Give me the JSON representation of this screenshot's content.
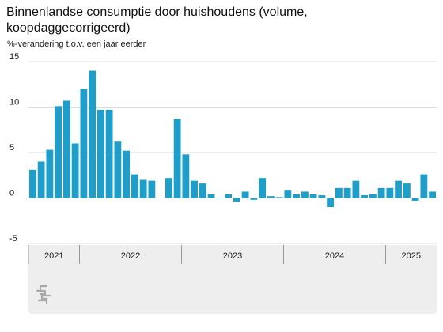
{
  "title": "Binnenlandse consumptie door huishoudens (volume, koopdaggecorrigeerd)",
  "subtitle": "%-verandering t.o.v. een jaar eerder",
  "colors": {
    "bar": "#1f9ec9",
    "grid": "#dcdcdc",
    "axis_band": "#eeeeee",
    "text": "#1a1a1a"
  },
  "logo": {
    "name": "cbs-logo-icon"
  },
  "chart_data": {
    "type": "bar",
    "y_ticks": [
      15,
      10,
      5,
      0,
      -5
    ],
    "ylim": [
      -5,
      15
    ],
    "grid": true,
    "years": [
      {
        "label": "2021",
        "months": 6
      },
      {
        "label": "2022",
        "months": 12
      },
      {
        "label": "2023",
        "months": 12
      },
      {
        "label": "2024",
        "months": 12
      },
      {
        "label": "2025",
        "months": 6
      }
    ],
    "values": [
      3.1,
      4.0,
      5.3,
      10.1,
      10.7,
      6.0,
      12.0,
      14.0,
      9.7,
      9.7,
      6.2,
      5.2,
      2.6,
      2.0,
      1.9,
      null,
      2.2,
      8.7,
      4.8,
      1.9,
      1.6,
      0.4,
      0.0,
      0.4,
      -0.4,
      0.7,
      -0.2,
      2.2,
      0.2,
      0.1,
      0.9,
      0.4,
      0.7,
      0.4,
      0.3,
      -1.0,
      1.1,
      1.1,
      1.9,
      0.3,
      0.4,
      1.1,
      1.1,
      1.9,
      1.6,
      -0.3,
      2.6,
      0.7
    ]
  }
}
